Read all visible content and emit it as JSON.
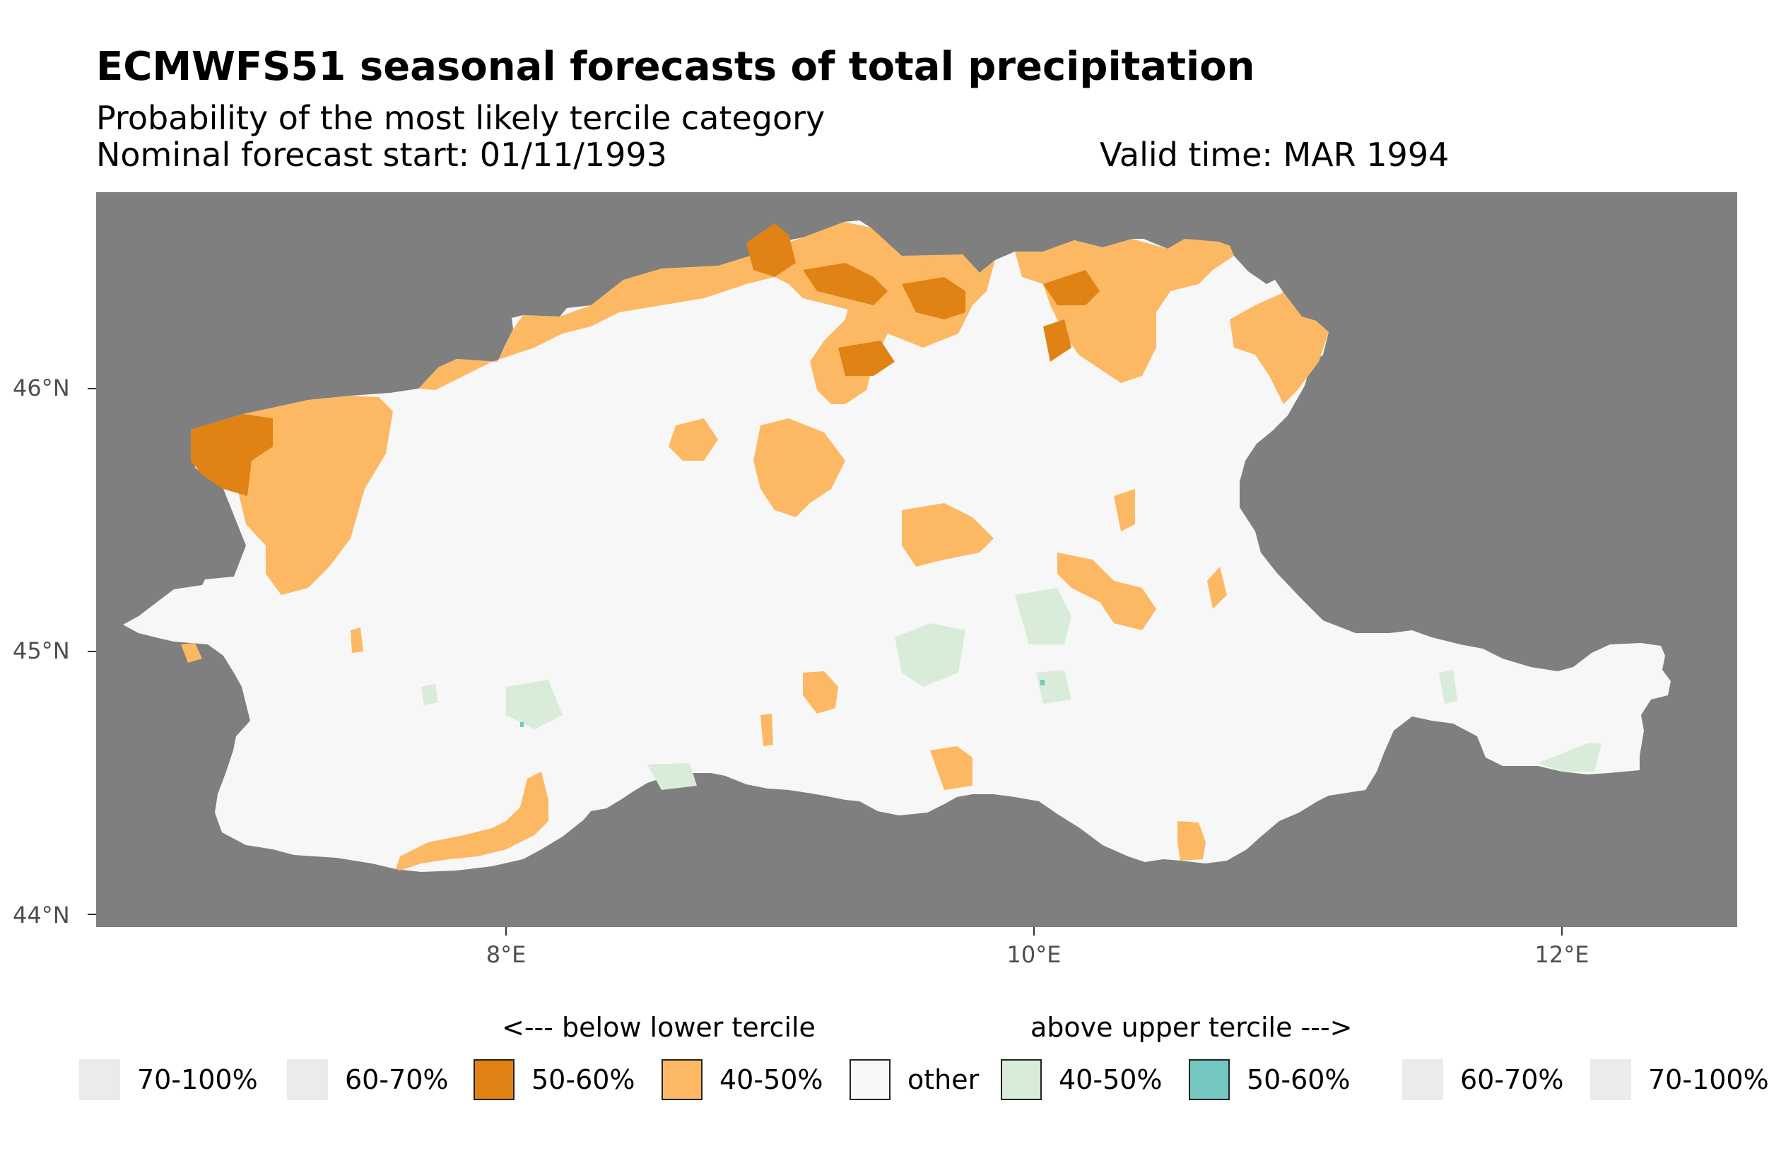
{
  "title": "ECMWFS51 seasonal forecasts of total precipitation",
  "subtitle": "Probability of the most likely tercile category",
  "start_label": "Nominal forecast start: 01/11/1993",
  "valid_label": "Valid time: MAR 1994",
  "axes": {
    "y_ticks": [
      "46°N",
      "45°N",
      "44°N"
    ],
    "x_ticks": [
      "8°E",
      "10°E",
      "12°E"
    ]
  },
  "colors": {
    "background": "#7f7f7f",
    "land_other": "#f7f7f7",
    "below_50_60": "#e08214",
    "below_40_50": "#fdb863",
    "above_40_50": "#d9ebd9",
    "above_50_60": "#74c7c1",
    "high_prob_blank": "#ebebeb"
  },
  "legend": {
    "below_header": "<--- below lower tercile",
    "above_header": "above upper tercile --->",
    "items": [
      {
        "label": "70-100%",
        "color": "#ebebeb",
        "border": false
      },
      {
        "label": "60-70%",
        "color": "#ebebeb",
        "border": false
      },
      {
        "label": "50-60%",
        "color": "#e08214",
        "border": true
      },
      {
        "label": "40-50%",
        "color": "#fdb863",
        "border": true
      },
      {
        "label": "other",
        "color": "#f7f7f7",
        "border": true
      },
      {
        "label": "40-50%",
        "color": "#d9ebd9",
        "border": true
      },
      {
        "label": "50-60%",
        "color": "#74c7c1",
        "border": true
      },
      {
        "label": "60-70%",
        "color": "#ebebeb",
        "border": false
      },
      {
        "label": "70-100%",
        "color": "#ebebeb",
        "border": false
      }
    ]
  }
}
